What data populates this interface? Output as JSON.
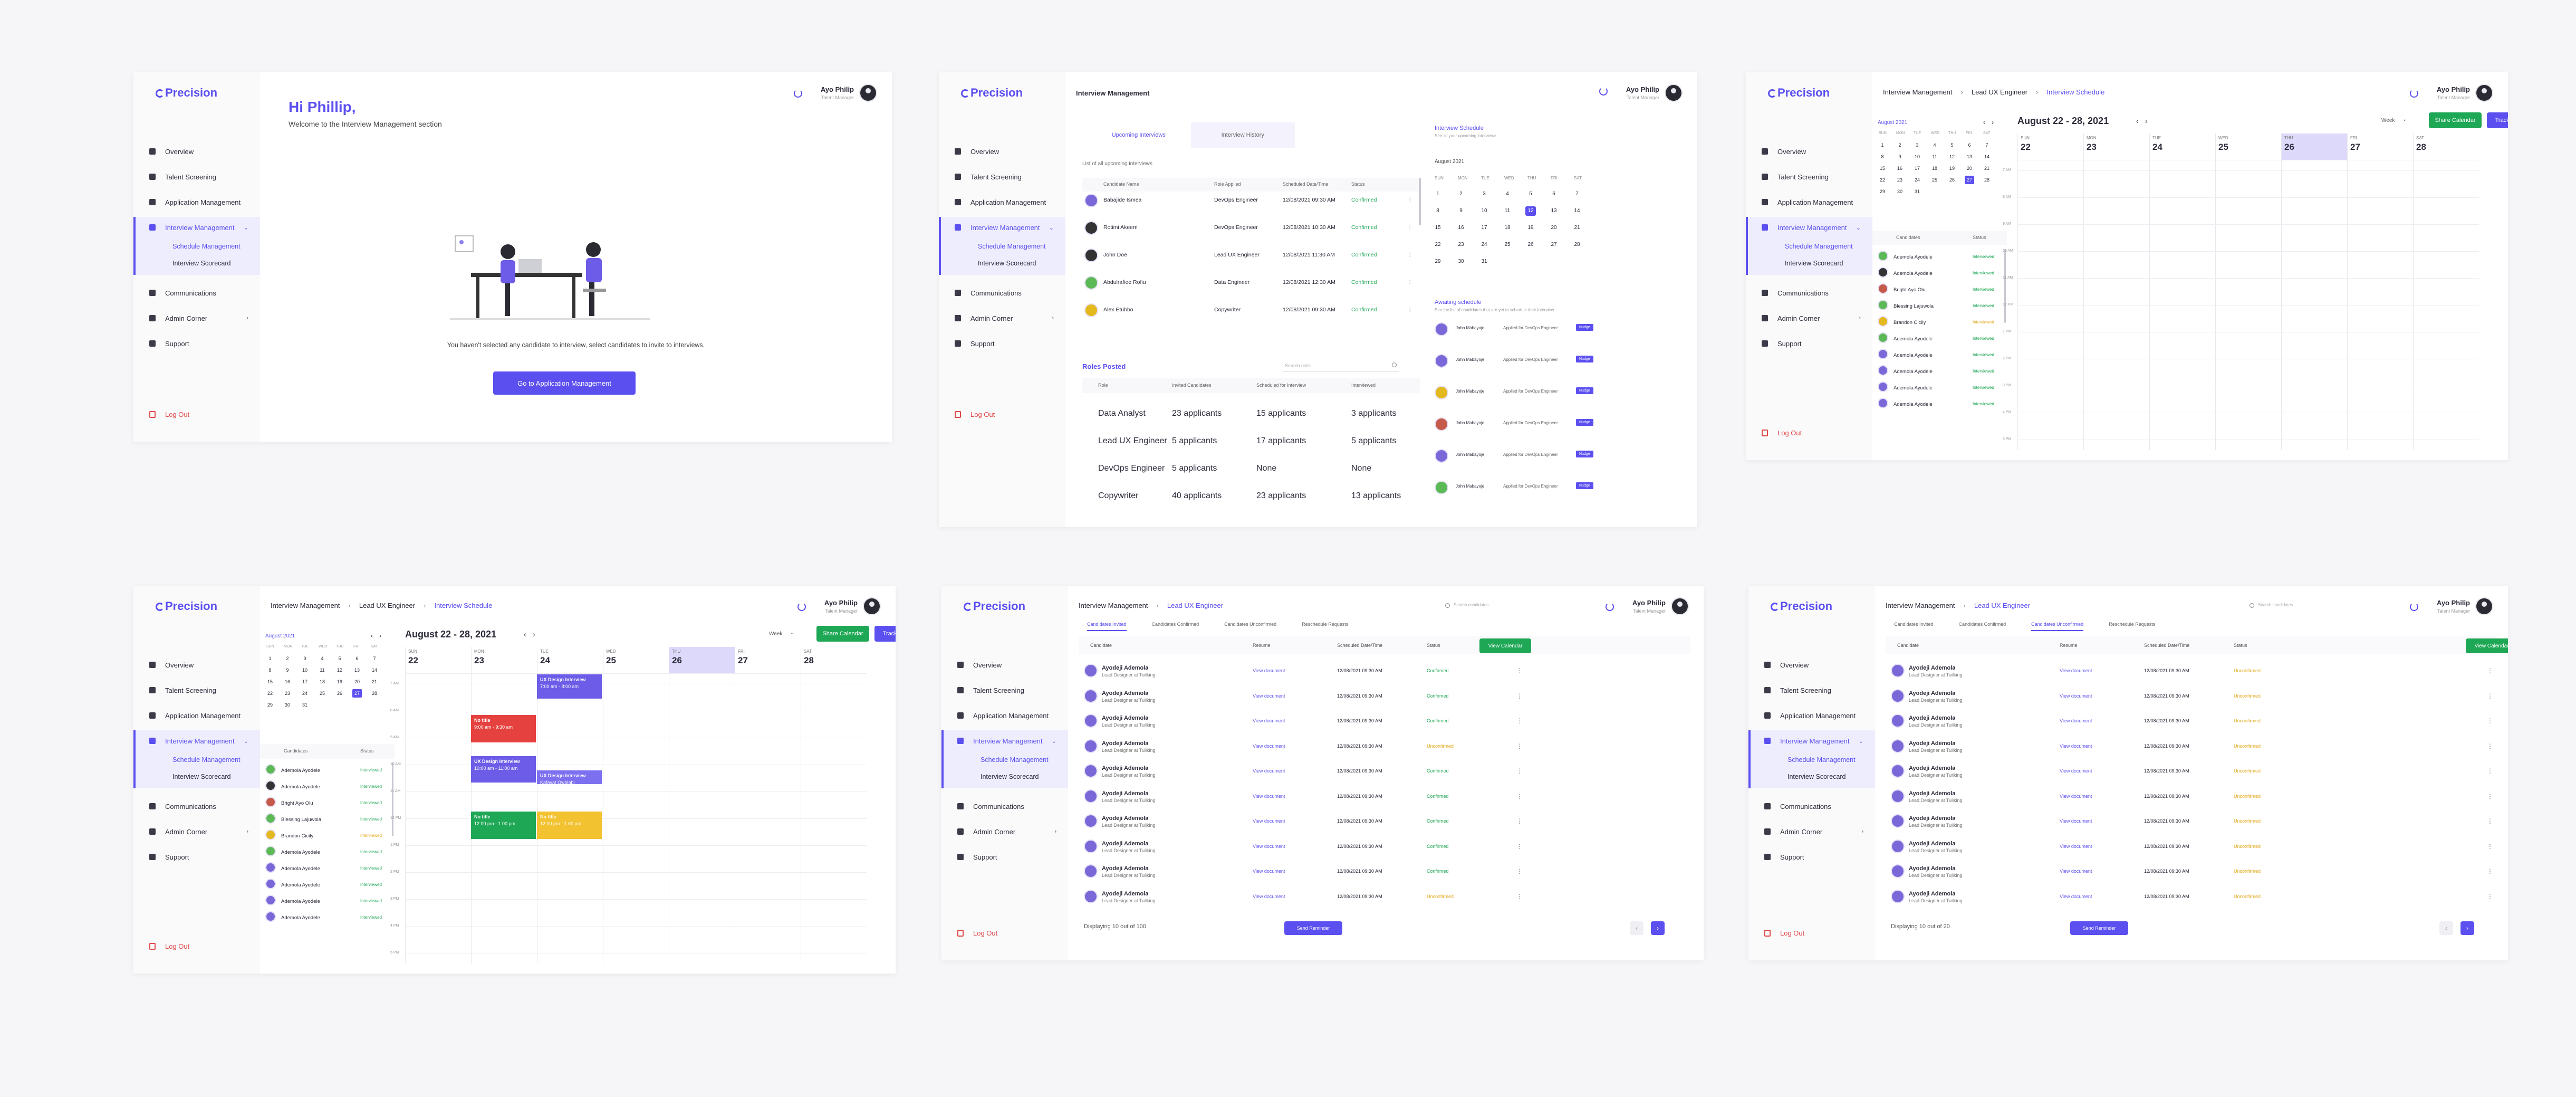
{
  "brand": "Precision",
  "user": {
    "name": "Ayo Philip",
    "role": "Talent Manager"
  },
  "nav": {
    "overview": "Overview",
    "talent": "Talent Screening",
    "application": "Application Management",
    "interview": "Interview Management",
    "schedule": "Schedule Management",
    "scorecard": "Interview Scorecard",
    "communications": "Communications",
    "admin": "Admin Corner",
    "support": "Support",
    "logout": "Log Out"
  },
  "p1": {
    "greeting": "Hi Phillip,",
    "welcome": "Welcome to the Interview Management section",
    "empty_text": "You haven't selected any candidate to interview, select candidates to invite to interviews.",
    "cta": "Go to Application Management"
  },
  "p2": {
    "title": "Interview Management",
    "tab_upcoming": "Upcoming Interviews",
    "tab_history": "Interview History",
    "list_caption": "List of all upcoming interviews",
    "cols": [
      "Candidate Name",
      "Role Applied",
      "Scheduled Date/Time",
      "Status"
    ],
    "rows": [
      {
        "name": "Babajide Ismea",
        "role": "DevOps Engineer",
        "date": "12/08/2021  09:30 AM",
        "status": "Confirmed"
      },
      {
        "name": "Rotimi Akeem",
        "role": "DevOps Engineer",
        "date": "12/08/2021  10:30 AM",
        "status": "Confirmed"
      },
      {
        "name": "John Doe",
        "role": "Lead UX Engineer",
        "date": "12/08/2021  11:30 AM",
        "status": "Confirmed"
      },
      {
        "name": "Abdulrafiee Rofiu",
        "role": "Data Engineer",
        "date": "12/08/2021  12:30 AM",
        "status": "Confirmed"
      },
      {
        "name": "Alex Etubbo",
        "role": "Copywriter",
        "date": "12/08/2021  09:30 AM",
        "status": "Confirmed"
      }
    ],
    "schedule_title": "Interview Schedule",
    "schedule_sub": "See all your upcoming interviews",
    "month": "August 2021",
    "weekdays": [
      "SUN",
      "MON",
      "TUE",
      "WED",
      "THU",
      "FRI",
      "SAT"
    ],
    "days": [
      "1",
      "2",
      "3",
      "4",
      "5",
      "6",
      "7",
      "8",
      "9",
      "10",
      "11",
      "12",
      "13",
      "14",
      "15",
      "16",
      "17",
      "18",
      "19",
      "20",
      "21",
      "22",
      "23",
      "24",
      "25",
      "26",
      "27",
      "28",
      "29",
      "30",
      "31"
    ],
    "roles_title": "Roles Posted",
    "roles_search": "Search roles",
    "roles_cols": [
      "Role",
      "Invited Candidates",
      "Scheduled for Interview",
      "Interviewed"
    ],
    "roles": [
      {
        "role": "Data Analyst",
        "inv": "23 applicants",
        "sch": "15 applicants",
        "int": "3 applicants"
      },
      {
        "role": "Lead UX Engineer",
        "inv": "5 applicants",
        "sch": "17 applicants",
        "int": "5 applicants"
      },
      {
        "role": "DevOps Engineer",
        "inv": "5 applicants",
        "sch": "None",
        "int": "None"
      },
      {
        "role": "Copywriter",
        "inv": "40 applicants",
        "sch": "23 applicants",
        "int": "13 applicants"
      }
    ],
    "awaiting_title": "Awaiting schedule",
    "awaiting_sub": "See the list of candidates that are yet to schedule their interview",
    "awaiting_name": "John Mabayoje",
    "awaiting_role": "Applied for DevOps Engineer",
    "awaiting_btn": "Nudge"
  },
  "cal": {
    "bc1": "Interview Management",
    "bc2": "Lead UX Engineer",
    "bc3": "Interview Schedule",
    "range": "August  22 - 28, 2021",
    "view": "Week",
    "share": "Share Calendar",
    "track": "Track Appointments",
    "week": [
      {
        "d": "SUN",
        "n": "22"
      },
      {
        "d": "MON",
        "n": "23"
      },
      {
        "d": "TUE",
        "n": "24"
      },
      {
        "d": "WED",
        "n": "25"
      },
      {
        "d": "THU",
        "n": "26"
      },
      {
        "d": "FRI",
        "n": "27"
      },
      {
        "d": "SAT",
        "n": "28"
      }
    ],
    "hours": [
      "7 AM",
      "8 AM",
      "9 AM",
      "10 AM",
      "11 AM",
      "12 PM",
      "1 PM",
      "2 PM",
      "3 PM",
      "4 PM",
      "5 PM"
    ],
    "cand_col": "Candidates",
    "status_col": "Status",
    "candidates": [
      {
        "name": "Ademola Ayodele",
        "status": "Interviewed"
      },
      {
        "name": "Ademola Ayodele",
        "status": "Interviewed"
      },
      {
        "name": "Bright Ayo Olu",
        "status": "Interviewed"
      },
      {
        "name": "Blessing Lajuwola",
        "status": "Interviewed"
      },
      {
        "name": "Brandon Cicily",
        "status": "Interviewed"
      },
      {
        "name": "Ademola Ayodele",
        "status": "Interviewed"
      },
      {
        "name": "Ademola Ayodele",
        "status": "Interviewed"
      },
      {
        "name": "Ademola Ayodele",
        "status": "Interviewed"
      },
      {
        "name": "Ademola Ayodele",
        "status": "Interviewed"
      },
      {
        "name": "Ademola Ayodele",
        "status": "Interviewed"
      }
    ],
    "events": [
      {
        "title": "UX Design Interview",
        "time": "7:00 am - 8:00 am"
      },
      {
        "title": "No title",
        "time": "9:00 am - 9:30 am"
      },
      {
        "title": "UX Design Interview",
        "time": "10:00 am - 11:00 am"
      },
      {
        "title": "UX Design Interview",
        "time": "Kafayat Owolabi"
      },
      {
        "title": "No title",
        "time": "12:00 pm - 1:00 pm"
      },
      {
        "title": "No title",
        "time": "12:00 pm - 1:00 pm"
      }
    ]
  },
  "list": {
    "bc1": "Interview Management",
    "bc2": "Lead UX Engineer",
    "search": "Search candidates",
    "tabs": [
      "Candidates Invited",
      "Candidates Confirmed",
      "Candidates Unconfirmed",
      "Reschedule Requests"
    ],
    "cols": [
      "Candidate",
      "Resume",
      "Scheduled Date/Time",
      "Status"
    ],
    "view_calendar": "View Calendar",
    "row_name": "Ayodeji Ademola",
    "row_role": "Lead Designer at Tuilking",
    "row_resume": "View document",
    "row_date": "12/08/2021   09:30 AM",
    "status_ok": "Confirmed",
    "status_pending": "Unconfirmed",
    "footer_a": "Displaying 10 out of 100",
    "footer_b": "Displaying 10 out of 20",
    "send_reminder": "Send Reminder"
  }
}
